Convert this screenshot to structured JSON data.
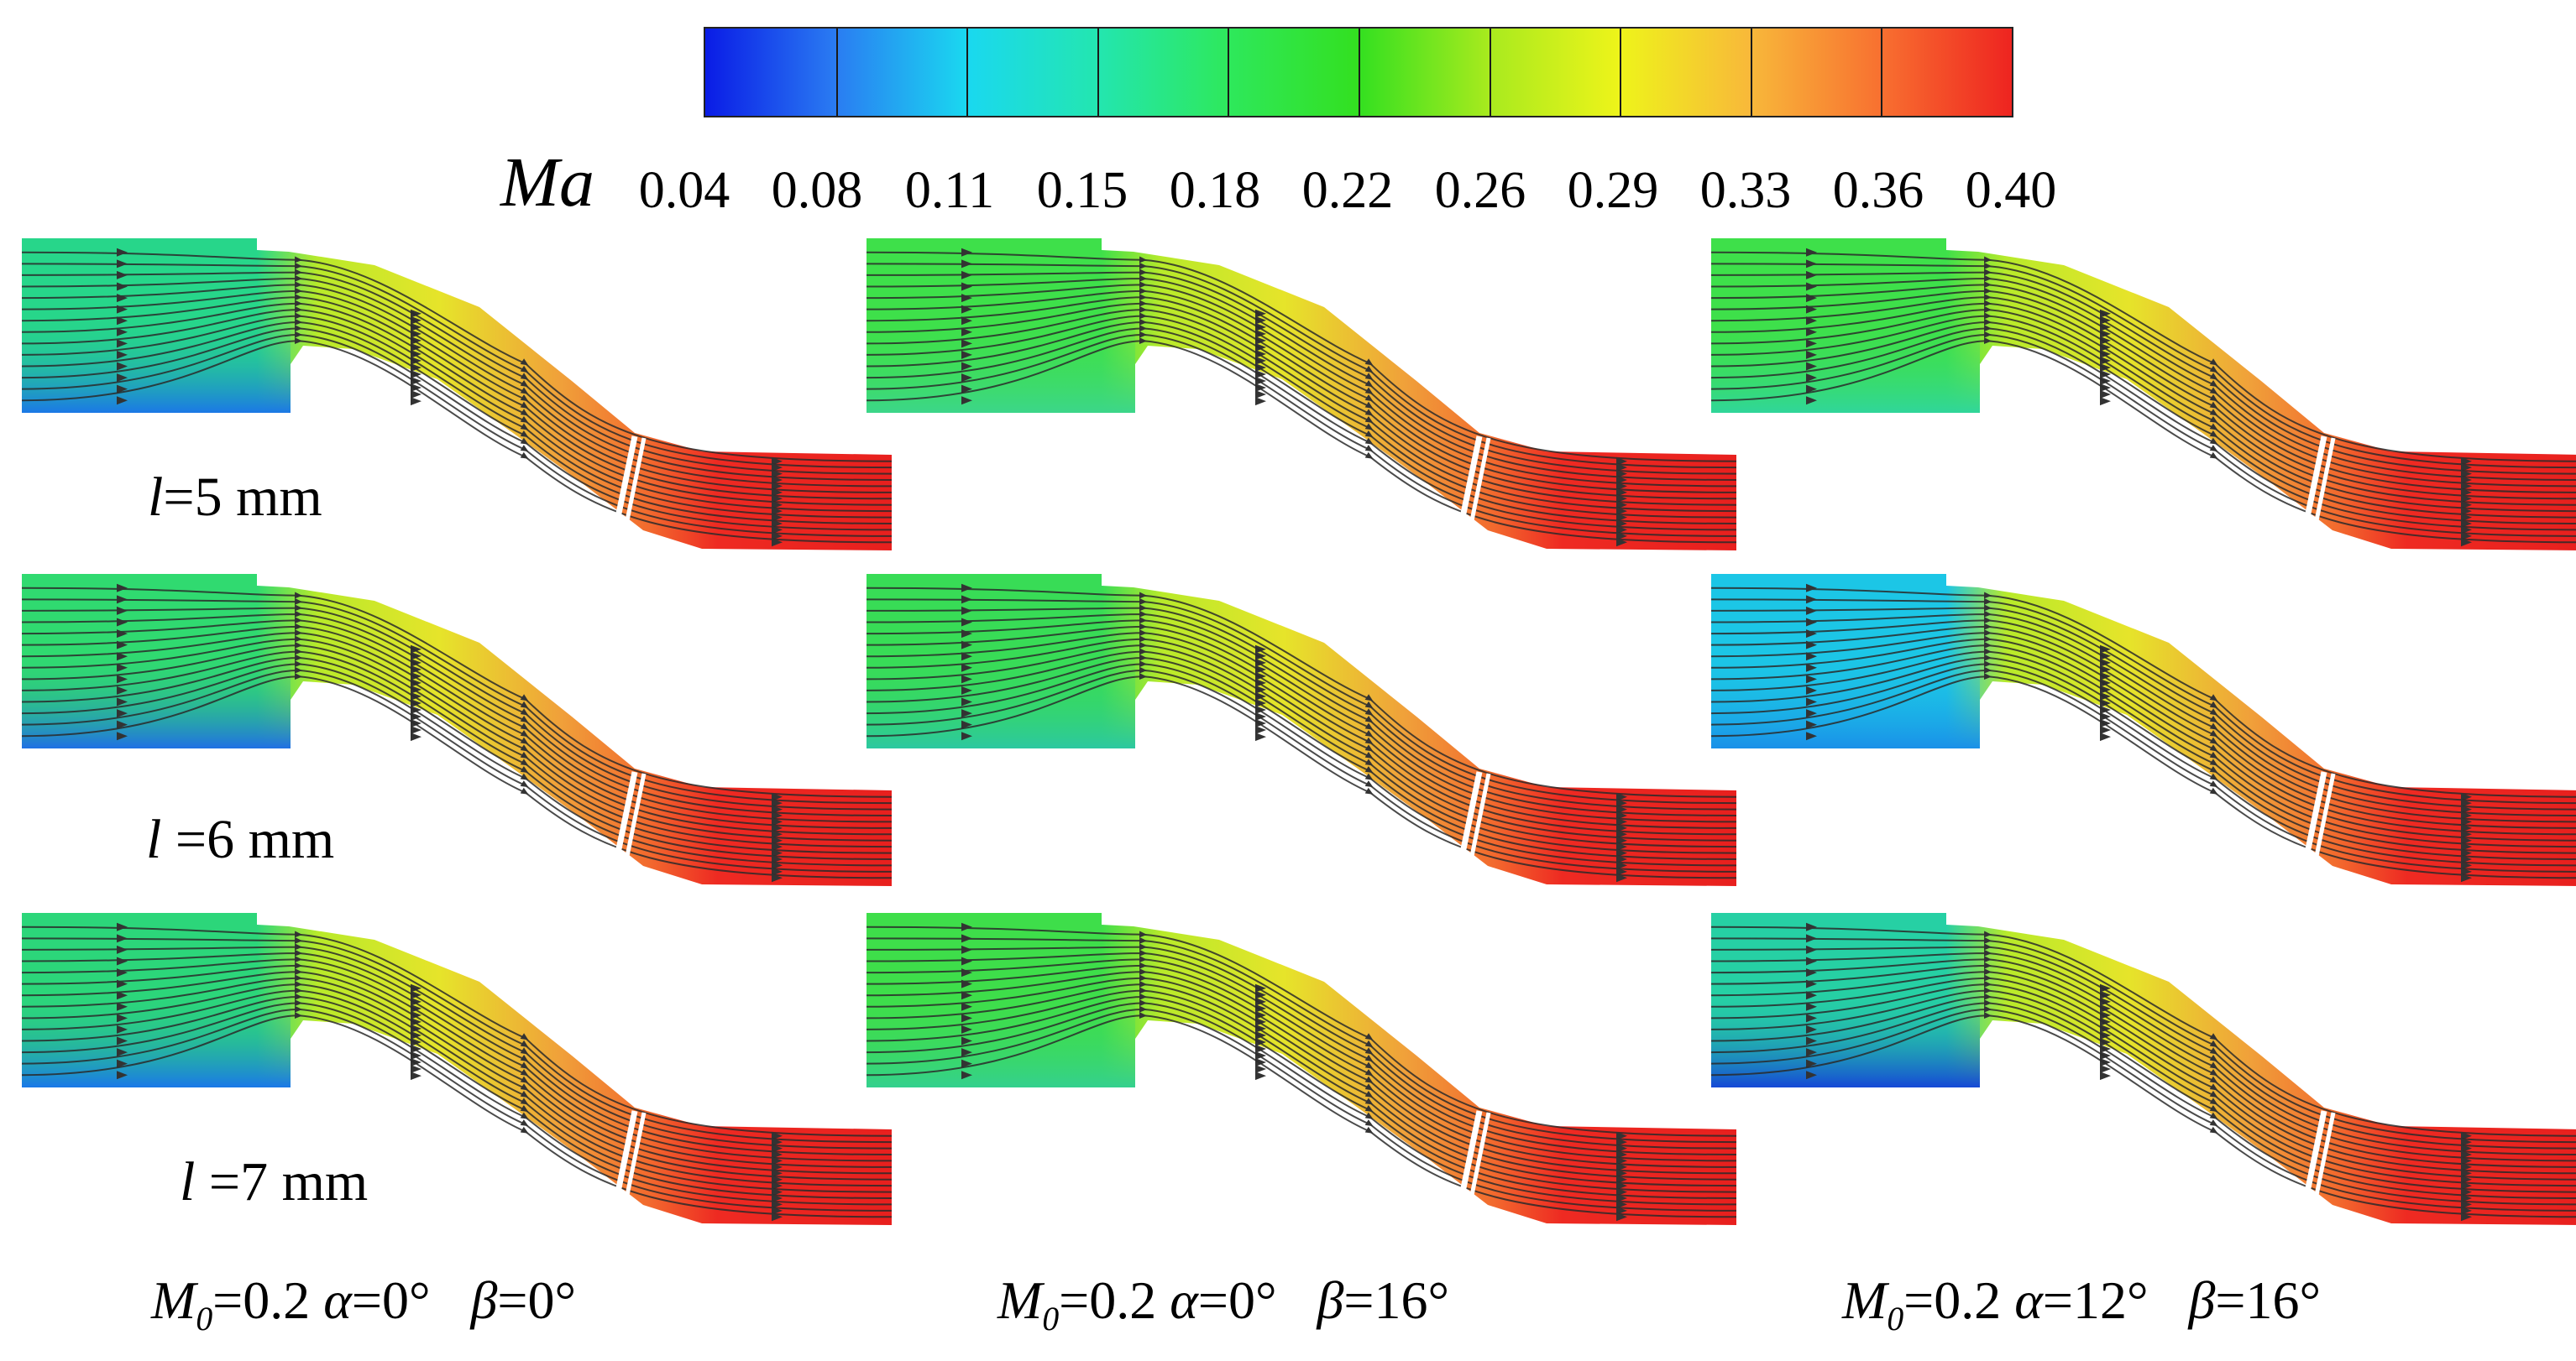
{
  "colorbar": {
    "quantity": "Ma",
    "ticks": [
      "0.04",
      "0.08",
      "0.11",
      "0.15",
      "0.18",
      "0.22",
      "0.26",
      "0.29",
      "0.33",
      "0.36",
      "0.40"
    ],
    "colors": [
      "#0a1ce6",
      "#2a7cf2",
      "#1ad8f0",
      "#23e6b0",
      "#2ee85c",
      "#33e020",
      "#a8ea1e",
      "#eef41a",
      "#f8b83a",
      "#f87030",
      "#ee2420"
    ]
  },
  "rows": [
    {
      "prefix": "l",
      "text": "=5 mm"
    },
    {
      "prefix": "l",
      "text": " =6 mm"
    },
    {
      "prefix": "l",
      "text": " =7 mm"
    }
  ],
  "columns": [
    {
      "m": "M",
      "m_sub": "0",
      "m_val": "=0.2",
      "alpha_sym": "α",
      "alpha_val": "=0°",
      "beta_sym": "β",
      "beta_val": "=0°"
    },
    {
      "m": "M",
      "m_sub": "0",
      "m_val": "=0.2",
      "alpha_sym": "α",
      "alpha_val": "=0°",
      "beta_sym": "β",
      "beta_val": "=16°"
    },
    {
      "m": "M",
      "m_sub": "0",
      "m_val": "=0.2",
      "alpha_sym": "α",
      "alpha_val": "=12°",
      "beta_sym": "β",
      "beta_val": "=16°"
    }
  ],
  "panels": [
    {
      "inlet_color": "#27d68a",
      "pocket_color": "#1b78e6"
    },
    {
      "inlet_color": "#3ee04a",
      "pocket_color": "#3cd68a"
    },
    {
      "inlet_color": "#3ee04a",
      "pocket_color": "#30d69a"
    },
    {
      "inlet_color": "#30da70",
      "pocket_color": "#2070e4"
    },
    {
      "inlet_color": "#38dc56",
      "pocket_color": "#2cc8a0"
    },
    {
      "inlet_color": "#1cc6e6",
      "pocket_color": "#1a90e8"
    },
    {
      "inlet_color": "#2cd67a",
      "pocket_color": "#1a78e8"
    },
    {
      "inlet_color": "#3ede4a",
      "pocket_color": "#34d08e"
    },
    {
      "inlet_color": "#26d0a4",
      "pocket_color": "#1548d6"
    }
  ]
}
